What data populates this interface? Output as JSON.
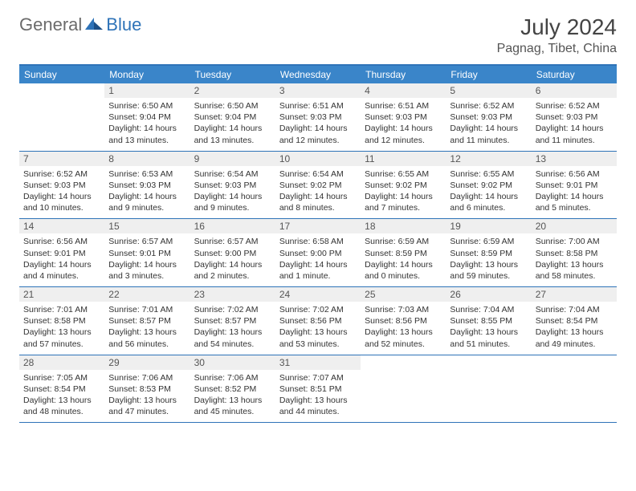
{
  "logo": {
    "text1": "General",
    "text2": "Blue"
  },
  "title": "July 2024",
  "location": "Pagnag, Tibet, China",
  "brand_color": "#2e73b8",
  "header_bg": "#3a85c9",
  "daynum_bg": "#efefef",
  "dow": [
    "Sunday",
    "Monday",
    "Tuesday",
    "Wednesday",
    "Thursday",
    "Friday",
    "Saturday"
  ],
  "weeks": [
    [
      {
        "n": "",
        "sr": "",
        "ss": "",
        "dl": ""
      },
      {
        "n": "1",
        "sr": "Sunrise: 6:50 AM",
        "ss": "Sunset: 9:04 PM",
        "dl": "Daylight: 14 hours and 13 minutes."
      },
      {
        "n": "2",
        "sr": "Sunrise: 6:50 AM",
        "ss": "Sunset: 9:04 PM",
        "dl": "Daylight: 14 hours and 13 minutes."
      },
      {
        "n": "3",
        "sr": "Sunrise: 6:51 AM",
        "ss": "Sunset: 9:03 PM",
        "dl": "Daylight: 14 hours and 12 minutes."
      },
      {
        "n": "4",
        "sr": "Sunrise: 6:51 AM",
        "ss": "Sunset: 9:03 PM",
        "dl": "Daylight: 14 hours and 12 minutes."
      },
      {
        "n": "5",
        "sr": "Sunrise: 6:52 AM",
        "ss": "Sunset: 9:03 PM",
        "dl": "Daylight: 14 hours and 11 minutes."
      },
      {
        "n": "6",
        "sr": "Sunrise: 6:52 AM",
        "ss": "Sunset: 9:03 PM",
        "dl": "Daylight: 14 hours and 11 minutes."
      }
    ],
    [
      {
        "n": "7",
        "sr": "Sunrise: 6:52 AM",
        "ss": "Sunset: 9:03 PM",
        "dl": "Daylight: 14 hours and 10 minutes."
      },
      {
        "n": "8",
        "sr": "Sunrise: 6:53 AM",
        "ss": "Sunset: 9:03 PM",
        "dl": "Daylight: 14 hours and 9 minutes."
      },
      {
        "n": "9",
        "sr": "Sunrise: 6:54 AM",
        "ss": "Sunset: 9:03 PM",
        "dl": "Daylight: 14 hours and 9 minutes."
      },
      {
        "n": "10",
        "sr": "Sunrise: 6:54 AM",
        "ss": "Sunset: 9:02 PM",
        "dl": "Daylight: 14 hours and 8 minutes."
      },
      {
        "n": "11",
        "sr": "Sunrise: 6:55 AM",
        "ss": "Sunset: 9:02 PM",
        "dl": "Daylight: 14 hours and 7 minutes."
      },
      {
        "n": "12",
        "sr": "Sunrise: 6:55 AM",
        "ss": "Sunset: 9:02 PM",
        "dl": "Daylight: 14 hours and 6 minutes."
      },
      {
        "n": "13",
        "sr": "Sunrise: 6:56 AM",
        "ss": "Sunset: 9:01 PM",
        "dl": "Daylight: 14 hours and 5 minutes."
      }
    ],
    [
      {
        "n": "14",
        "sr": "Sunrise: 6:56 AM",
        "ss": "Sunset: 9:01 PM",
        "dl": "Daylight: 14 hours and 4 minutes."
      },
      {
        "n": "15",
        "sr": "Sunrise: 6:57 AM",
        "ss": "Sunset: 9:01 PM",
        "dl": "Daylight: 14 hours and 3 minutes."
      },
      {
        "n": "16",
        "sr": "Sunrise: 6:57 AM",
        "ss": "Sunset: 9:00 PM",
        "dl": "Daylight: 14 hours and 2 minutes."
      },
      {
        "n": "17",
        "sr": "Sunrise: 6:58 AM",
        "ss": "Sunset: 9:00 PM",
        "dl": "Daylight: 14 hours and 1 minute."
      },
      {
        "n": "18",
        "sr": "Sunrise: 6:59 AM",
        "ss": "Sunset: 8:59 PM",
        "dl": "Daylight: 14 hours and 0 minutes."
      },
      {
        "n": "19",
        "sr": "Sunrise: 6:59 AM",
        "ss": "Sunset: 8:59 PM",
        "dl": "Daylight: 13 hours and 59 minutes."
      },
      {
        "n": "20",
        "sr": "Sunrise: 7:00 AM",
        "ss": "Sunset: 8:58 PM",
        "dl": "Daylight: 13 hours and 58 minutes."
      }
    ],
    [
      {
        "n": "21",
        "sr": "Sunrise: 7:01 AM",
        "ss": "Sunset: 8:58 PM",
        "dl": "Daylight: 13 hours and 57 minutes."
      },
      {
        "n": "22",
        "sr": "Sunrise: 7:01 AM",
        "ss": "Sunset: 8:57 PM",
        "dl": "Daylight: 13 hours and 56 minutes."
      },
      {
        "n": "23",
        "sr": "Sunrise: 7:02 AM",
        "ss": "Sunset: 8:57 PM",
        "dl": "Daylight: 13 hours and 54 minutes."
      },
      {
        "n": "24",
        "sr": "Sunrise: 7:02 AM",
        "ss": "Sunset: 8:56 PM",
        "dl": "Daylight: 13 hours and 53 minutes."
      },
      {
        "n": "25",
        "sr": "Sunrise: 7:03 AM",
        "ss": "Sunset: 8:56 PM",
        "dl": "Daylight: 13 hours and 52 minutes."
      },
      {
        "n": "26",
        "sr": "Sunrise: 7:04 AM",
        "ss": "Sunset: 8:55 PM",
        "dl": "Daylight: 13 hours and 51 minutes."
      },
      {
        "n": "27",
        "sr": "Sunrise: 7:04 AM",
        "ss": "Sunset: 8:54 PM",
        "dl": "Daylight: 13 hours and 49 minutes."
      }
    ],
    [
      {
        "n": "28",
        "sr": "Sunrise: 7:05 AM",
        "ss": "Sunset: 8:54 PM",
        "dl": "Daylight: 13 hours and 48 minutes."
      },
      {
        "n": "29",
        "sr": "Sunrise: 7:06 AM",
        "ss": "Sunset: 8:53 PM",
        "dl": "Daylight: 13 hours and 47 minutes."
      },
      {
        "n": "30",
        "sr": "Sunrise: 7:06 AM",
        "ss": "Sunset: 8:52 PM",
        "dl": "Daylight: 13 hours and 45 minutes."
      },
      {
        "n": "31",
        "sr": "Sunrise: 7:07 AM",
        "ss": "Sunset: 8:51 PM",
        "dl": "Daylight: 13 hours and 44 minutes."
      },
      {
        "n": "",
        "sr": "",
        "ss": "",
        "dl": ""
      },
      {
        "n": "",
        "sr": "",
        "ss": "",
        "dl": ""
      },
      {
        "n": "",
        "sr": "",
        "ss": "",
        "dl": ""
      }
    ]
  ]
}
